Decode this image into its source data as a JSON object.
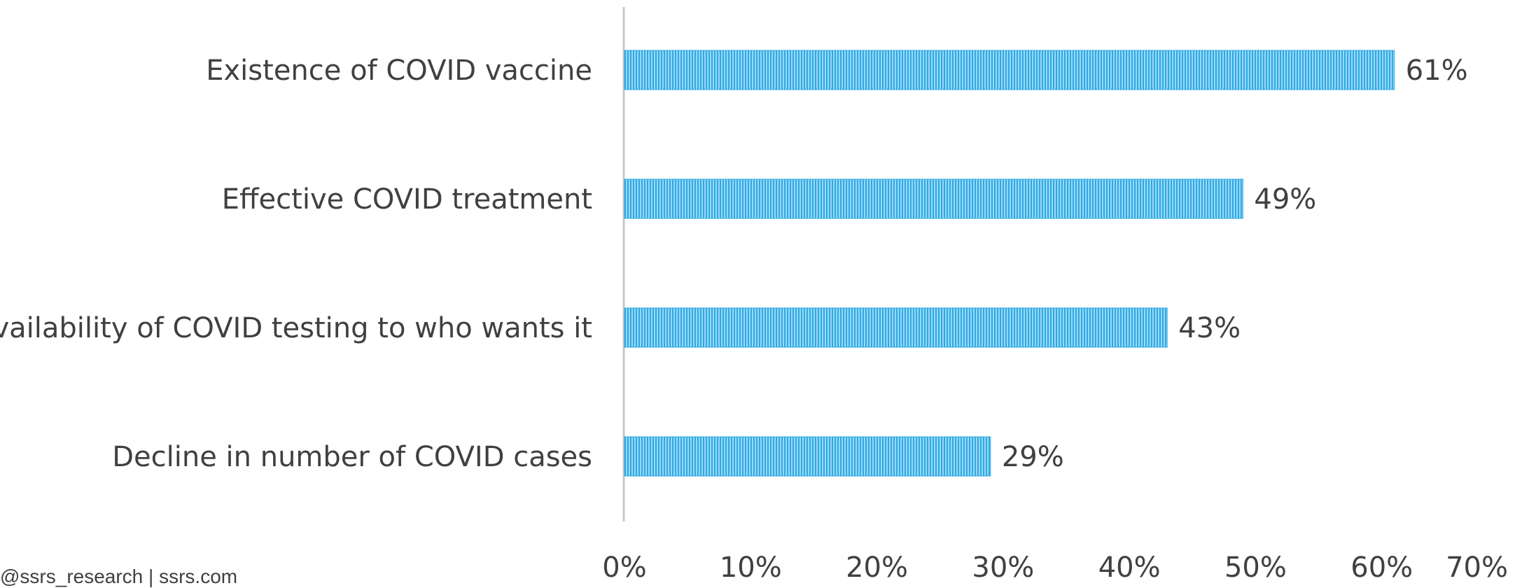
{
  "chart_data": {
    "type": "bar",
    "orientation": "horizontal",
    "categories": [
      "Existence of COVID vaccine",
      "Effective COVID treatment",
      "Availability of COVID testing to who wants it",
      "Decline in number of COVID cases"
    ],
    "values": [
      61,
      49,
      43,
      29
    ],
    "value_labels": [
      "61%",
      "49%",
      "43%",
      "29%"
    ],
    "xlim": [
      0,
      70
    ],
    "xticks": [
      "0%",
      "10%",
      "20%",
      "30%",
      "40%",
      "50%",
      "60%",
      "70%"
    ],
    "title": "",
    "xlabel": "",
    "ylabel": "",
    "grid": false,
    "bar_color": "#3CB4E8",
    "bar_pattern": "vertical-stripes"
  },
  "footer": {
    "credit": "@ssrs_research | ssrs.com"
  }
}
